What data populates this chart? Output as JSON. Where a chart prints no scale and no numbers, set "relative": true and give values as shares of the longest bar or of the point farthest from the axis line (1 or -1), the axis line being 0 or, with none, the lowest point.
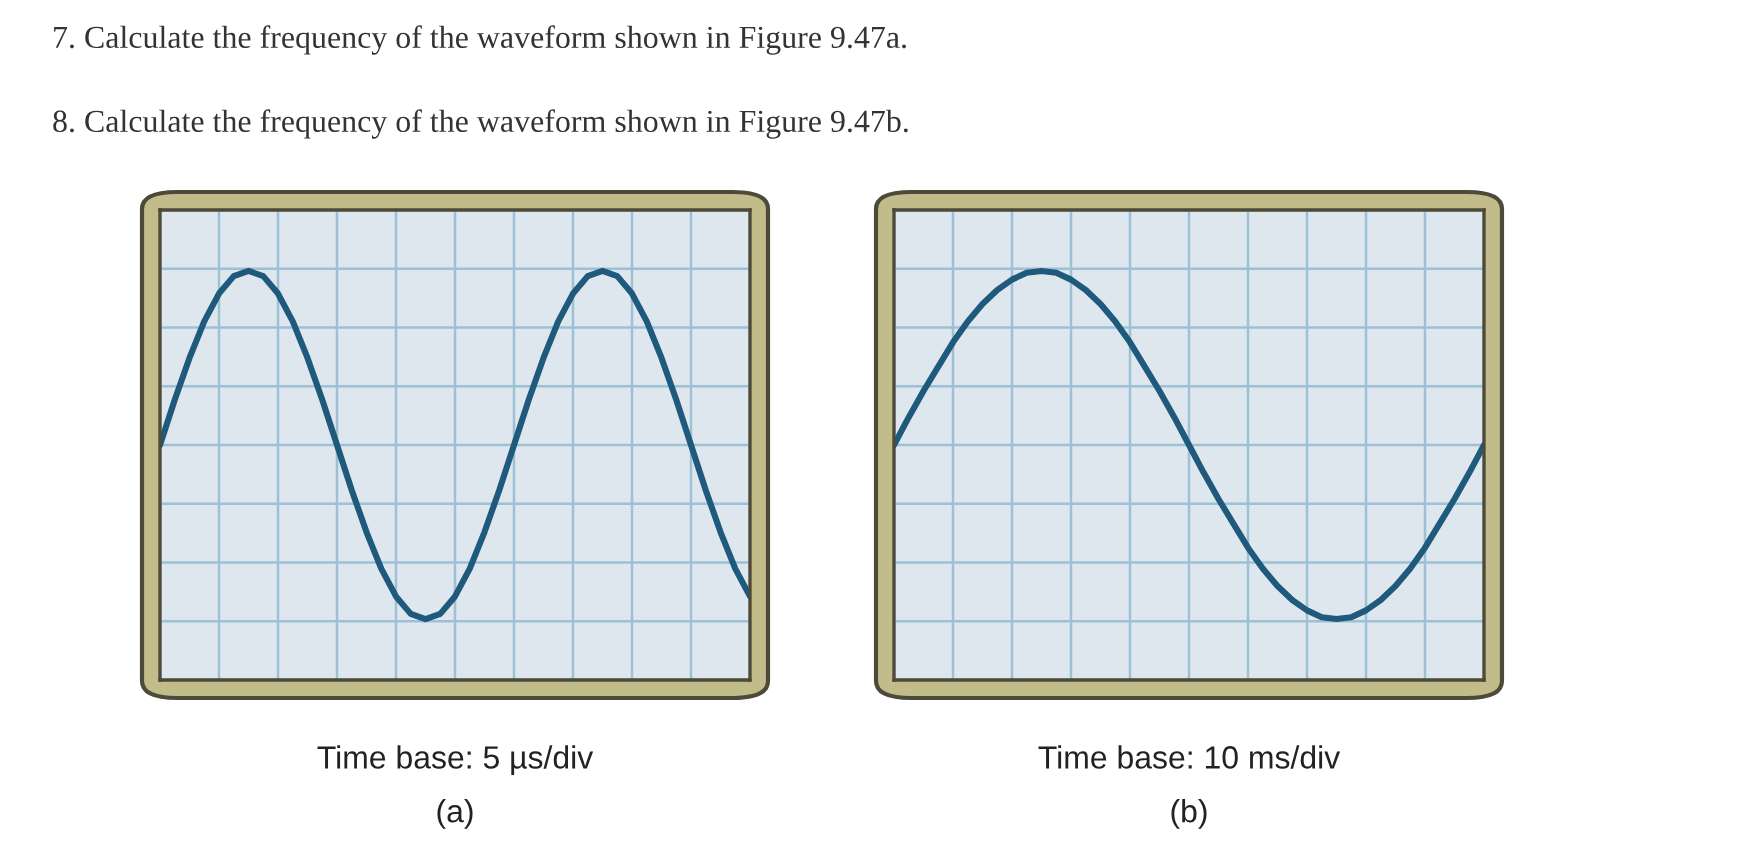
{
  "chart_data": [
    {
      "type": "line",
      "relative": true,
      "grid": true,
      "tick_labels": false,
      "xlabel": "Time base: 5 µs/div",
      "annotations": [
        "7. Calculate the frequency of the waveform shown in Figure 9.47a.",
        "8. Calculate the frequency of the waveform shown in Figure 9.47b.",
        "(a)"
      ],
      "categories": [
        null,
        null,
        null,
        null,
        null,
        null,
        null,
        null,
        null,
        null,
        null,
        null,
        null,
        null,
        null,
        null,
        null,
        null,
        null,
        null,
        null,
        null,
        null,
        null,
        null,
        null,
        null,
        null,
        null,
        null,
        null,
        null,
        null,
        null,
        null,
        null,
        null,
        null,
        null,
        null,
        null
      ],
      "series": [
        {
          "color": "#1f5a7d",
          "values": [
            0,
            0.26,
            0.5,
            0.71,
            0.87,
            0.97,
            1,
            0.97,
            0.87,
            0.71,
            0.5,
            0.26,
            0,
            -0.26,
            -0.5,
            -0.71,
            -0.87,
            -0.97,
            -1,
            -0.97,
            -0.87,
            -0.71,
            -0.5,
            -0.26,
            0,
            0.26,
            0.5,
            0.71,
            0.87,
            0.97,
            1,
            0.97,
            0.87,
            0.71,
            0.5,
            0.26,
            0,
            -0.26,
            -0.5,
            -0.71,
            -0.87
          ]
        }
      ]
    },
    {
      "type": "line",
      "relative": true,
      "grid": true,
      "tick_labels": false,
      "xlabel": "Time base: 10 ms/div",
      "annotations": [
        "(b)"
      ],
      "categories": [
        null,
        null,
        null,
        null,
        null,
        null,
        null,
        null,
        null,
        null,
        null,
        null,
        null,
        null,
        null,
        null,
        null,
        null,
        null,
        null,
        null,
        null,
        null,
        null,
        null,
        null,
        null,
        null,
        null,
        null,
        null,
        null,
        null,
        null,
        null,
        null,
        null,
        null,
        null,
        null,
        null
      ],
      "series": [
        {
          "color": "#1f5a7d",
          "values": [
            0,
            0.16,
            0.31,
            0.45,
            0.59,
            0.71,
            0.81,
            0.89,
            0.95,
            0.99,
            1,
            0.99,
            0.95,
            0.89,
            0.81,
            0.71,
            0.59,
            0.45,
            0.31,
            0.16,
            0,
            -0.16,
            -0.31,
            -0.45,
            -0.59,
            -0.71,
            -0.81,
            -0.89,
            -0.95,
            -0.99,
            -1,
            -0.99,
            -0.95,
            -0.89,
            -0.81,
            -0.71,
            -0.59,
            -0.45,
            -0.31,
            -0.16,
            0
          ]
        }
      ]
    }
  ]
}
